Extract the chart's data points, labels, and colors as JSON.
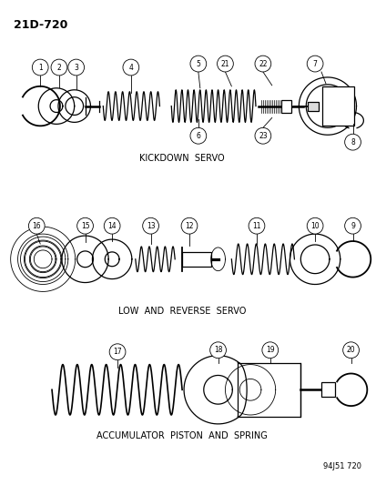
{
  "page_id": "21D-720",
  "bg_color": "#ffffff",
  "line_color": "#000000",
  "fig_width": 4.14,
  "fig_height": 5.33,
  "dpi": 100,
  "part_number": "94J51 720",
  "section1_label": "KICKDOWN  SERVO",
  "section2_label": "LOW  AND  REVERSE  SERVO",
  "section3_label": "ACCUMULATOR  PISTON  AND  SPRING"
}
